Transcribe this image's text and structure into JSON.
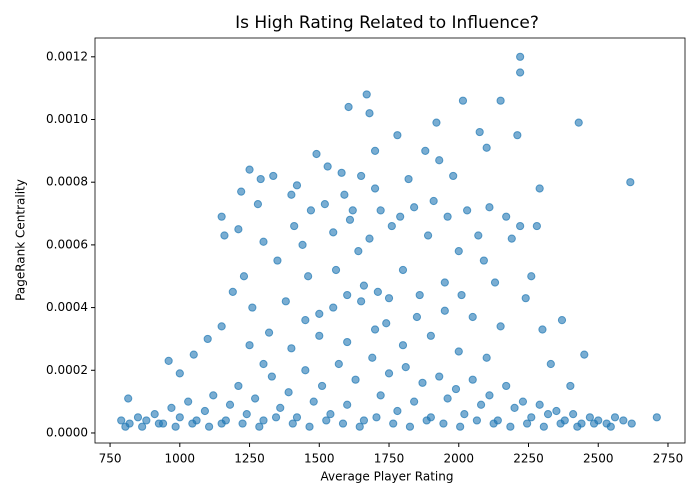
{
  "chart_data": {
    "type": "scatter",
    "title": "Is High Rating Related to Influence?",
    "x_label": "Average Player Rating",
    "y_label": "PageRank Centrality",
    "color": "#1f77b4",
    "xlim": [
      696,
      2811
    ],
    "ylim": [
      -3.2e-05,
      0.00126
    ],
    "xticks": [
      750,
      1000,
      1250,
      1500,
      1750,
      2000,
      2250,
      2500,
      2750
    ],
    "yticks": [
      {
        "value": 0,
        "label": "0.0000"
      },
      {
        "value": 0.0002,
        "label": "0.0002"
      },
      {
        "value": 0.0004,
        "label": "0.0004"
      },
      {
        "value": 0.0006,
        "label": "0.0006"
      },
      {
        "value": 0.0008,
        "label": "0.0008"
      },
      {
        "value": 0.001,
        "label": "0.0010"
      },
      {
        "value": 0.0012,
        "label": "0.0012"
      }
    ],
    "x": [
      790,
      820,
      850,
      880,
      910,
      940,
      970,
      1000,
      1030,
      1060,
      1090,
      1120,
      1150,
      1180,
      1210,
      1240,
      1270,
      1300,
      1330,
      1360,
      1390,
      1420,
      1450,
      1480,
      1510,
      1540,
      1570,
      1600,
      1630,
      1660,
      1690,
      1720,
      1750,
      1780,
      1810,
      1840,
      1870,
      1900,
      1930,
      1960,
      1990,
      2020,
      2050,
      2080,
      2110,
      2140,
      2170,
      2200,
      2230,
      2260,
      2290,
      2320,
      2350,
      2380,
      2410,
      2440,
      2470,
      2500,
      2530,
      2560,
      2590,
      2620,
      805,
      865,
      925,
      985,
      1045,
      1105,
      1165,
      1225,
      1285,
      1345,
      1405,
      1465,
      1525,
      1585,
      1645,
      1705,
      1765,
      1825,
      1885,
      1945,
      2005,
      2065,
      2125,
      2185,
      2245,
      2305,
      2365,
      2425,
      2485,
      2545,
      960,
      1000,
      1050,
      1100,
      1150,
      1150,
      1160,
      1190,
      1210,
      1220,
      1230,
      1250,
      1260,
      1280,
      1290,
      1300,
      1320,
      1335,
      1350,
      1380,
      1400,
      1410,
      1420,
      1440,
      1460,
      1470,
      1490,
      1500,
      1520,
      1530,
      1550,
      1560,
      1580,
      1590,
      1600,
      1610,
      1620,
      1640,
      1650,
      1660,
      1680,
      1700,
      1700,
      1710,
      1720,
      1740,
      1760,
      1790,
      1800,
      1820,
      1840,
      1860,
      1880,
      1890,
      1910,
      1930,
      1950,
      1960,
      1980,
      2000,
      2010,
      2030,
      2050,
      2070,
      2090,
      2110,
      2130,
      2150,
      2170,
      2190,
      2220,
      2240,
      2260,
      2280,
      2290,
      2300,
      2330,
      2370,
      2400,
      2450,
      1250,
      1300,
      1400,
      1500,
      1600,
      1700,
      1800,
      1900,
      2000,
      2100,
      1450,
      1550,
      1650,
      1750,
      1850,
      1950,
      1670,
      1605,
      1680,
      2015,
      2150,
      2220,
      2220,
      2430,
      2615,
      1920,
      2100,
      2075,
      2210,
      1780,
      2710,
      815
    ],
    "values": [
      4e-05,
      3e-05,
      5e-05,
      4e-05,
      6e-05,
      3e-05,
      8e-05,
      5e-05,
      0.0001,
      4e-05,
      7e-05,
      0.00012,
      3e-05,
      9e-05,
      0.00015,
      6e-05,
      0.00011,
      4e-05,
      0.00018,
      8e-05,
      0.00013,
      5e-05,
      0.0002,
      0.0001,
      0.00015,
      6e-05,
      0.00022,
      9e-05,
      0.00017,
      4e-05,
      0.00024,
      0.00012,
      0.00019,
      7e-05,
      0.00021,
      0.0001,
      0.00016,
      5e-05,
      0.00018,
      0.00011,
      0.00014,
      6e-05,
      0.00017,
      9e-05,
      0.00012,
      4e-05,
      0.00015,
      8e-05,
      0.0001,
      5e-05,
      9e-05,
      6e-05,
      7e-05,
      4e-05,
      6e-05,
      3e-05,
      5e-05,
      4e-05,
      3e-05,
      5e-05,
      4e-05,
      3e-05,
      2e-05,
      2e-05,
      3e-05,
      2e-05,
      3e-05,
      2e-05,
      4e-05,
      3e-05,
      2e-05,
      5e-05,
      3e-05,
      2e-05,
      4e-05,
      3e-05,
      2e-05,
      5e-05,
      3e-05,
      2e-05,
      4e-05,
      3e-05,
      2e-05,
      4e-05,
      3e-05,
      2e-05,
      3e-05,
      2e-05,
      3e-05,
      2e-05,
      3e-05,
      2e-05,
      0.00023,
      0.00019,
      0.00025,
      0.0003,
      0.00034,
      0.00069,
      0.00063,
      0.00045,
      0.00065,
      0.00077,
      0.0005,
      0.00084,
      0.0004,
      0.00073,
      0.00081,
      0.00061,
      0.00032,
      0.00082,
      0.00055,
      0.00042,
      0.00076,
      0.00066,
      0.00079,
      0.0006,
      0.0005,
      0.00071,
      0.00089,
      0.00038,
      0.00073,
      0.00085,
      0.00064,
      0.00052,
      0.00083,
      0.00076,
      0.00044,
      0.00068,
      0.00071,
      0.00058,
      0.00082,
      0.00047,
      0.00062,
      0.0009,
      0.00078,
      0.00045,
      0.00071,
      0.00035,
      0.00066,
      0.00069,
      0.00052,
      0.00081,
      0.00072,
      0.00044,
      0.0009,
      0.00063,
      0.00074,
      0.00087,
      0.00048,
      0.00069,
      0.00082,
      0.00058,
      0.00044,
      0.00071,
      0.00037,
      0.00063,
      0.00055,
      0.00072,
      0.00048,
      0.00034,
      0.00069,
      0.00062,
      0.00066,
      0.00043,
      0.0005,
      0.00066,
      0.00078,
      0.00033,
      0.00022,
      0.00036,
      0.00015,
      0.00025,
      0.00028,
      0.00022,
      0.00027,
      0.00031,
      0.00029,
      0.00033,
      0.00028,
      0.00031,
      0.00026,
      0.00024,
      0.00036,
      0.0004,
      0.00042,
      0.00043,
      0.00037,
      0.00039,
      0.00108,
      0.00104,
      0.00102,
      0.00106,
      0.00106,
      0.0012,
      0.00115,
      0.00099,
      0.0008,
      0.00099,
      0.00091,
      0.00096,
      0.00095,
      0.00095,
      5e-05,
      0.00011
    ]
  }
}
